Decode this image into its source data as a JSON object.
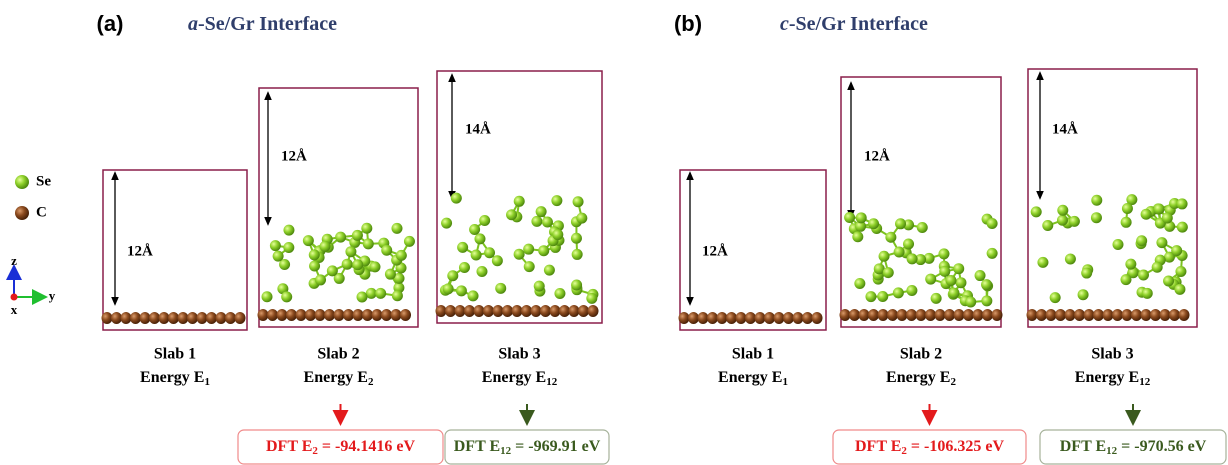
{
  "legend": [
    {
      "label": "Se"
    },
    {
      "label": "C"
    }
  ],
  "axes": {
    "z": "z",
    "y": "y",
    "x": "x"
  },
  "panels": [
    {
      "label": "(a)",
      "title": {
        "italic": "a",
        "rest": "-Se/Gr Interface"
      },
      "slabs": [
        {
          "name": "Slab 1",
          "energy": {
            "text": "Energy E",
            "sub": "1"
          },
          "height": "12Å"
        },
        {
          "name": "Slab 2",
          "energy": {
            "text": "Energy E",
            "sub": "2"
          },
          "height": "12Å"
        },
        {
          "name": "Slab 3",
          "energy": {
            "text": "Energy E",
            "sub": "12"
          },
          "height": "14Å"
        }
      ],
      "results": [
        {
          "prefix": "DFT E",
          "sub": "2",
          "suffix": " = -94.1416 eV"
        },
        {
          "prefix": "DFT E",
          "sub": "12",
          "suffix": " = -969.91 eV"
        }
      ]
    },
    {
      "label": "(b)",
      "title": {
        "italic": "c",
        "rest": "-Se/Gr Interface"
      },
      "slabs": [
        {
          "name": "Slab 1",
          "energy": {
            "text": "Energy E",
            "sub": "1"
          },
          "height": "12Å"
        },
        {
          "name": "Slab 2",
          "energy": {
            "text": "Energy E",
            "sub": "2"
          },
          "height": "12Å"
        },
        {
          "name": "Slab 3",
          "energy": {
            "text": "Energy E",
            "sub": "12"
          },
          "height": "14Å"
        }
      ],
      "results": [
        {
          "prefix": "DFT E",
          "sub": "2",
          "suffix": " = -106.325 eV"
        },
        {
          "prefix": "DFT E",
          "sub": "12",
          "suffix": " = -970.56 eV"
        }
      ]
    }
  ]
}
